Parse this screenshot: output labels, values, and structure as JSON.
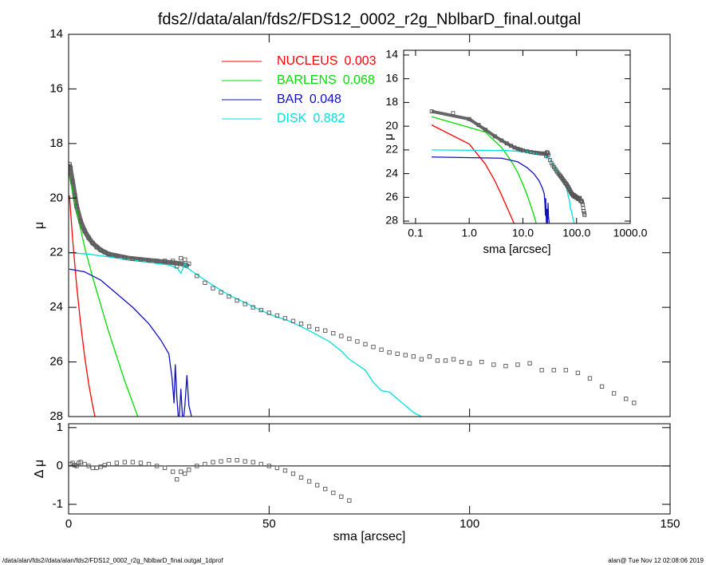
{
  "chart_data": [
    {
      "type": "line",
      "title": "fds2//data/alan/fds2/FDS12_0002_r2g_NblbarD_final.outgal",
      "ylabel": "μ",
      "xlim": [
        0,
        150
      ],
      "xticks": [
        0,
        50,
        100,
        150
      ],
      "ylim": [
        14,
        28
      ],
      "yticks": [
        14,
        16,
        18,
        20,
        22,
        24,
        26,
        28
      ],
      "y_reversed": true,
      "series": [
        {
          "style": "line",
          "color": "#666666",
          "x": [
            0.2,
            1,
            2,
            3,
            4,
            5,
            6,
            8,
            10,
            15,
            20,
            25,
            28,
            30
          ],
          "values": [
            18.75,
            19.4,
            20.3,
            20.85,
            21.2,
            21.45,
            21.65,
            21.9,
            22.05,
            22.2,
            22.28,
            22.35,
            22.4,
            22.5
          ]
        },
        {
          "name": "NUCLEUS",
          "fraction": 0.003,
          "style": "line",
          "color": "#ff0000",
          "x": [
            0.2,
            1,
            2,
            3,
            4,
            5,
            6,
            7
          ],
          "values": [
            19.9,
            21.5,
            23.2,
            24.6,
            25.8,
            26.8,
            27.6,
            28.3
          ]
        },
        {
          "name": "BARLENS",
          "fraction": 0.068,
          "style": "line",
          "color": "#00dd00",
          "x": [
            0.2,
            2,
            4,
            6,
            8,
            10,
            12,
            14,
            16,
            18
          ],
          "values": [
            19.2,
            20.5,
            21.8,
            22.9,
            23.9,
            24.9,
            25.8,
            26.7,
            27.5,
            28.3
          ]
        },
        {
          "name": "BAR",
          "fraction": 0.048,
          "style": "line",
          "color": "#1010c0",
          "x": [
            0.2,
            4,
            8,
            12,
            16,
            20,
            23,
            25,
            25.8,
            26.3,
            26.6,
            27,
            27.5,
            28,
            28.5,
            29,
            29.5,
            30,
            30.5,
            31
          ],
          "values": [
            22.6,
            22.7,
            23.0,
            23.5,
            24.0,
            24.6,
            25.2,
            25.7,
            26.6,
            27.5,
            26.1,
            27.3,
            28.3,
            27.0,
            28.3,
            27.6,
            26.5,
            27.6,
            27.9,
            28.3
          ]
        },
        {
          "name": "DISK",
          "fraction": 0.882,
          "style": "line",
          "color": "#00e0e0",
          "x": [
            0.2,
            5,
            10,
            15,
            20,
            25,
            27,
            28,
            29,
            30,
            35,
            40,
            45,
            50,
            55,
            60,
            65,
            68,
            70,
            72,
            74,
            76,
            78,
            80,
            82,
            84,
            86,
            88,
            90
          ],
          "values": [
            22.0,
            22.05,
            22.15,
            22.25,
            22.35,
            22.45,
            22.55,
            22.75,
            22.4,
            22.6,
            23.1,
            23.55,
            23.9,
            24.25,
            24.5,
            24.85,
            25.25,
            25.6,
            25.9,
            26.1,
            26.3,
            26.75,
            27.05,
            27.1,
            27.35,
            27.6,
            27.85,
            28.0,
            28.2
          ]
        },
        {
          "style": "points",
          "color": "#555555",
          "x": [
            0.2,
            0.5,
            1,
            1.5,
            2,
            3,
            4,
            5,
            6,
            7,
            8,
            9,
            10,
            12,
            14,
            16,
            18,
            20,
            22,
            24,
            26,
            27,
            28,
            29,
            30,
            32,
            34,
            36,
            38,
            40,
            42,
            44,
            46,
            48,
            50,
            52,
            54,
            56,
            58,
            60,
            62,
            64,
            66,
            68,
            70,
            72,
            74,
            76,
            78,
            80,
            82,
            84,
            86,
            88,
            90,
            92,
            94,
            96,
            98,
            100,
            103,
            106,
            109,
            112,
            115,
            118,
            121,
            124,
            127,
            130,
            133,
            136,
            139,
            141
          ],
          "values": [
            18.75,
            18.9,
            19.4,
            19.9,
            20.3,
            20.85,
            21.2,
            21.45,
            21.65,
            21.8,
            21.9,
            21.98,
            22.05,
            22.12,
            22.18,
            22.22,
            22.25,
            22.28,
            22.3,
            22.3,
            22.3,
            22.5,
            22.2,
            22.25,
            22.4,
            22.85,
            23.1,
            23.3,
            23.45,
            23.6,
            23.75,
            23.88,
            24.0,
            24.1,
            24.2,
            24.3,
            24.4,
            24.5,
            24.6,
            24.7,
            24.8,
            24.85,
            24.95,
            25.05,
            25.15,
            25.25,
            25.35,
            25.45,
            25.55,
            25.65,
            25.7,
            25.75,
            25.8,
            25.9,
            25.8,
            25.95,
            25.95,
            25.9,
            26.0,
            26.05,
            26.0,
            26.1,
            26.15,
            26.1,
            26.05,
            26.3,
            26.3,
            26.3,
            26.4,
            26.6,
            26.9,
            27.15,
            27.35,
            27.5
          ]
        }
      ]
    },
    {
      "type": "scatter",
      "xlabel": "sma [arcsec]",
      "ylabel": "Δ μ",
      "xlim": [
        0,
        150
      ],
      "xticks": [
        0,
        50,
        100,
        150
      ],
      "ylim": [
        -1.25,
        1.1
      ],
      "yticks": [
        -1,
        0,
        1
      ],
      "zero_line": true,
      "series": [
        {
          "style": "points",
          "color": "#555555",
          "x": [
            0.5,
            1,
            1.5,
            2,
            2.5,
            3,
            4,
            5,
            6,
            7,
            8,
            9,
            10,
            12,
            14,
            16,
            18,
            20,
            22,
            24,
            26,
            27,
            28,
            29,
            30,
            32,
            34,
            36,
            38,
            40,
            42,
            44,
            46,
            48,
            50,
            52,
            54,
            56,
            58,
            60,
            62,
            64,
            66,
            68,
            70
          ],
          "values": [
            0.05,
            0.08,
            0.02,
            0.0,
            0.08,
            0.1,
            0.05,
            0.0,
            -0.05,
            -0.05,
            -0.02,
            0.02,
            0.05,
            0.08,
            0.1,
            0.1,
            0.08,
            0.05,
            0.0,
            -0.05,
            -0.15,
            -0.35,
            -0.15,
            -0.2,
            -0.1,
            0.0,
            0.05,
            0.1,
            0.12,
            0.15,
            0.15,
            0.12,
            0.1,
            0.05,
            0.0,
            -0.05,
            -0.12,
            -0.2,
            -0.3,
            -0.4,
            -0.5,
            -0.6,
            -0.7,
            -0.8,
            -0.9
          ]
        }
      ]
    },
    {
      "type": "line",
      "xscale": "log",
      "xlabel": "sma [arcsec]",
      "ylabel": "μ",
      "xlim": [
        0.06,
        1000
      ],
      "xticks": [
        0.1,
        {
          "value": 1,
          "label": "1.0"
        },
        {
          "value": 10,
          "label": "10.0"
        },
        {
          "value": 100,
          "label": "100.0"
        },
        {
          "value": 1000,
          "label": "1000.0"
        }
      ],
      "ylim": [
        13.6,
        28.2
      ],
      "yticks": [
        14,
        16,
        18,
        20,
        22,
        24,
        26,
        28
      ],
      "y_reversed": true
    }
  ],
  "footer": {
    "left": "/data/alan/fds2//data/alan/fds2/FDS12_0002_r2g_NblbarD_final.outgal_1dprof",
    "right": "alan@  Tue Nov 12 02:08:06 2019"
  }
}
